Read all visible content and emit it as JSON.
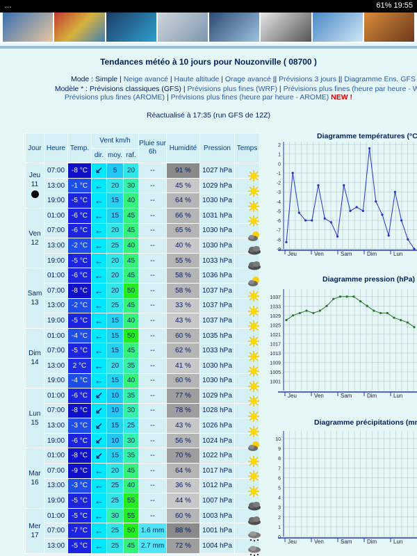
{
  "status_bar": {
    "left": "…",
    "battery": "61%",
    "time": "19:55"
  },
  "header": {
    "title": "Tendances météo à 10 jours pour Nouzonville ( 08700 )",
    "mode_label": "Mode : ",
    "modes": [
      "Simple",
      "Neige avancé",
      "Haute altitude",
      "Orage avancé",
      "Prévisions 3 jours",
      "Diagramme Ens. GFS"
    ],
    "model_label": "Modèle * : ",
    "models": [
      "Prévisions classiques (GFS)",
      "Prévisions plus fines (WRF)",
      "Prévisions plus fines (heure par heure - WRF)",
      "Prévisions plus fines (AROME)",
      "Prévisions plus fines (heure par heure - AROME)"
    ],
    "new_badge": "NEW !",
    "refresh": "Réactualisé à 17:35 (run GFS de 12Z)"
  },
  "table": {
    "headers": {
      "day": "Jour",
      "hour": "Heure",
      "temp": "Temp.",
      "wind": "Vent km/h",
      "dir": "dir.",
      "moy": "moy.",
      "raf": "raf.",
      "rain": "Pluie sur 6h",
      "hum": "Humidité",
      "pres": "Pression",
      "wx": "Temps"
    },
    "days": [
      {
        "name": "Jeu",
        "num": "11",
        "moon": true,
        "rows": [
          {
            "h": "07:00",
            "t": "-8 °C",
            "d": "↙",
            "m": "5",
            "r": "20",
            "p": "--",
            "hu": "91 %",
            "pr": "1027 hPa",
            "wx": "sun"
          },
          {
            "h": "13:00",
            "t": "-1 °C",
            "d": "←",
            "m": "20",
            "r": "30",
            "p": "--",
            "hu": "45 %",
            "pr": "1029 hPa",
            "wx": "sun"
          },
          {
            "h": "19:00",
            "t": "-5 °C",
            "d": "←",
            "m": "15",
            "r": "40",
            "p": "--",
            "hu": "64 %",
            "pr": "1030 hPa",
            "wx": "sun"
          }
        ]
      },
      {
        "name": "Ven",
        "num": "12",
        "rows": [
          {
            "h": "01:00",
            "t": "-6 °C",
            "d": "←",
            "m": "15",
            "r": "45",
            "p": "--",
            "hu": "66 %",
            "pr": "1031 hPa",
            "wx": "sun"
          },
          {
            "h": "07:00",
            "t": "-6 °C",
            "d": "←",
            "m": "20",
            "r": "45",
            "p": "--",
            "hu": "65 %",
            "pr": "1030 hPa",
            "wx": "suncloud"
          },
          {
            "h": "13:00",
            "t": "-2 °C",
            "d": "←",
            "m": "25",
            "r": "40",
            "p": "--",
            "hu": "40 %",
            "pr": "1030 hPa",
            "wx": "cloud"
          },
          {
            "h": "19:00",
            "t": "-5 °C",
            "d": "←",
            "m": "20",
            "r": "45",
            "p": "--",
            "hu": "55 %",
            "pr": "1033 hPa",
            "wx": "cloud"
          }
        ]
      },
      {
        "name": "Sam",
        "num": "13",
        "rows": [
          {
            "h": "01:00",
            "t": "-6 °C",
            "d": "←",
            "m": "20",
            "r": "45",
            "p": "--",
            "hu": "58 %",
            "pr": "1036 hPa",
            "wx": "suncloud"
          },
          {
            "h": "07:00",
            "t": "-8 °C",
            "d": "←",
            "m": "20",
            "r": "50",
            "p": "--",
            "hu": "58 %",
            "pr": "1037 hPa",
            "wx": "sun"
          },
          {
            "h": "13:00",
            "t": "-2 °C",
            "d": "←",
            "m": "25",
            "r": "45",
            "p": "--",
            "hu": "33 %",
            "pr": "1037 hPa",
            "wx": "sun"
          },
          {
            "h": "19:00",
            "t": "-5 °C",
            "d": "←",
            "m": "15",
            "r": "40",
            "p": "--",
            "hu": "43 %",
            "pr": "1037 hPa",
            "wx": "sun"
          }
        ]
      },
      {
        "name": "Dim",
        "num": "14",
        "rows": [
          {
            "h": "01:00",
            "t": "-4 °C",
            "d": "←",
            "m": "15",
            "r": "50",
            "p": "--",
            "hu": "60 %",
            "pr": "1035 hPa",
            "wx": "sun"
          },
          {
            "h": "07:00",
            "t": "-5 °C",
            "d": "←",
            "m": "15",
            "r": "45",
            "p": "--",
            "hu": "62 %",
            "pr": "1033 hPa",
            "wx": "sun"
          },
          {
            "h": "13:00",
            "t": "2 °C",
            "d": "←",
            "m": "20",
            "r": "35",
            "p": "--",
            "hu": "41 %",
            "pr": "1030 hPa",
            "wx": "sun"
          },
          {
            "h": "19:00",
            "t": "-4 °C",
            "d": "←",
            "m": "15",
            "r": "40",
            "p": "--",
            "hu": "60 %",
            "pr": "1030 hPa",
            "wx": "sun"
          }
        ]
      },
      {
        "name": "Lun",
        "num": "15",
        "rows": [
          {
            "h": "01:00",
            "t": "-6 °C",
            "d": "↙",
            "m": "10",
            "r": "35",
            "p": "--",
            "hu": "77 %",
            "pr": "1029 hPa",
            "wx": "sun"
          },
          {
            "h": "07:00",
            "t": "-8 °C",
            "d": "↙",
            "m": "10",
            "r": "30",
            "p": "--",
            "hu": "78 %",
            "pr": "1028 hPa",
            "wx": "sun"
          },
          {
            "h": "13:00",
            "t": "-3 °C",
            "d": "↙",
            "m": "15",
            "r": "25",
            "p": "--",
            "hu": "43 %",
            "pr": "1026 hPa",
            "wx": "sun"
          },
          {
            "h": "19:00",
            "t": "-6 °C",
            "d": "↙",
            "m": "10",
            "r": "30",
            "p": "--",
            "hu": "56 %",
            "pr": "1024 hPa",
            "wx": "suncloud"
          }
        ]
      },
      {
        "name": "Mar",
        "num": "16",
        "rows": [
          {
            "h": "01:00",
            "t": "-8 °C",
            "d": "↙",
            "m": "15",
            "r": "35",
            "p": "--",
            "hu": "70 %",
            "pr": "1022 hPa",
            "wx": "sun"
          },
          {
            "h": "07:00",
            "t": "-9 °C",
            "d": "←",
            "m": "20",
            "r": "45",
            "p": "--",
            "hu": "64 %",
            "pr": "1017 hPa",
            "wx": "sun"
          },
          {
            "h": "13:00",
            "t": "-3 °C",
            "d": "←",
            "m": "25",
            "r": "40",
            "p": "--",
            "hu": "36 %",
            "pr": "1012 hPa",
            "wx": "sun"
          },
          {
            "h": "19:00",
            "t": "-5 °C",
            "d": "←",
            "m": "25",
            "r": "55",
            "p": "--",
            "hu": "44 %",
            "pr": "1007 hPa",
            "wx": "cloud"
          }
        ]
      },
      {
        "name": "Mer",
        "num": "17",
        "rows": [
          {
            "h": "01:00",
            "t": "-5 °C",
            "d": "←",
            "m": "30",
            "r": "55",
            "p": "--",
            "hu": "60 %",
            "pr": "1003 hPa",
            "wx": "cloud"
          },
          {
            "h": "07:00",
            "t": "-7 °C",
            "d": "←",
            "m": "25",
            "r": "50",
            "p": "1.6 mm",
            "hu": "88 %",
            "pr": "1001 hPa",
            "wx": "snow"
          },
          {
            "h": "13:00",
            "t": "-5 °C",
            "d": "←",
            "m": "25",
            "r": "45",
            "p": "2.7 mm",
            "hu": "72 %",
            "pr": "1004 hPa",
            "wx": "snow"
          }
        ]
      }
    ]
  },
  "chart_data": [
    {
      "type": "line",
      "title": "Diagramme températures (°C) :",
      "x_labels": [
        "Jeu",
        "Ven",
        "Sam",
        "Dim",
        "Lun"
      ],
      "y_ticks": [
        2,
        1,
        0,
        -1,
        -2,
        -3,
        -4,
        -5,
        -6,
        -7,
        -8,
        -9
      ],
      "ylim": [
        -9,
        2
      ],
      "values": [
        -8.3,
        -1,
        -5.2,
        -6,
        -6,
        -2.3,
        -5.8,
        -6.2,
        -7.7,
        -2.3,
        -5,
        -4.6,
        -5,
        1.6,
        -4,
        -5.4,
        -7.6,
        -3,
        -6,
        -8,
        -9
      ],
      "color": "#2233cc"
    },
    {
      "type": "line",
      "title": "Diagramme pression (hPa) :",
      "x_labels": [
        "Jeu",
        "Ven",
        "Sam",
        "Dim",
        "Lun"
      ],
      "y_ticks": [
        1037,
        1033,
        1029,
        1025,
        1021,
        1017,
        1013,
        1009,
        1005,
        1001
      ],
      "ylim": [
        997,
        1039
      ],
      "values": [
        1027,
        1029,
        1030,
        1031,
        1030,
        1031,
        1033,
        1036,
        1037,
        1037,
        1037,
        1035,
        1033,
        1031,
        1030,
        1030,
        1028,
        1027,
        1026,
        1024
      ],
      "color": "#227722"
    },
    {
      "type": "bar",
      "title": "Diagramme précipitations (mm) :",
      "x_labels": [
        "Jeu",
        "Ven",
        "Sam",
        "Dim",
        "Lun"
      ],
      "y_ticks": [
        10,
        9,
        8,
        7,
        6,
        5,
        4,
        3,
        2,
        1,
        0
      ],
      "ylim": [
        0,
        10.5
      ],
      "values": [],
      "color": "#2233cc"
    }
  ]
}
